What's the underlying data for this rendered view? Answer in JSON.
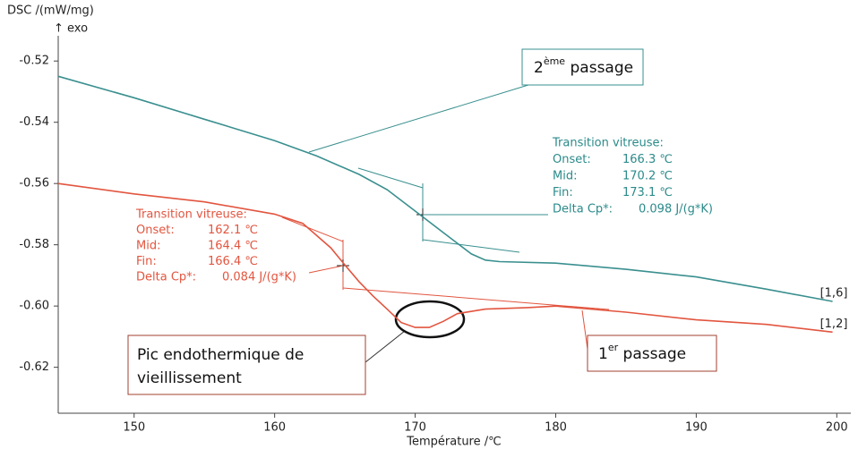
{
  "chart_data": {
    "type": "line",
    "y_label": "DSC /(mW/mg)",
    "y_label_2": "↑ exo",
    "x_label": "Température /℃",
    "xlim": [
      144.6,
      201
    ],
    "ylim": [
      -0.635,
      -0.503
    ],
    "xticks": [
      150,
      160,
      170,
      180,
      190,
      200
    ],
    "yticks": [
      -0.52,
      -0.54,
      -0.56,
      -0.58,
      {
        "value": -0.6,
        "label": "-0.60"
      },
      -0.62
    ],
    "series": [
      {
        "name": "[1,6]",
        "color": "#3a8f8f",
        "x": [
          144.6,
          150,
          155,
          160,
          163,
          166,
          168,
          170,
          172,
          174,
          175,
          176,
          180,
          185,
          190,
          195,
          199.7
        ],
        "values": [
          -0.525,
          -0.532,
          -0.539,
          -0.546,
          -0.551,
          -0.557,
          -0.562,
          -0.569,
          -0.576,
          -0.583,
          -0.585,
          -0.5855,
          -0.586,
          -0.588,
          -0.5905,
          -0.5945,
          -0.5985
        ]
      },
      {
        "name": "[1,2]",
        "color": "#e2553f",
        "x": [
          144.6,
          150,
          155,
          160,
          162,
          164,
          165,
          166,
          167,
          168,
          169,
          170,
          171,
          172,
          173,
          175,
          178,
          180,
          185,
          190,
          195,
          199.7
        ],
        "values": [
          -0.56,
          -0.5634,
          -0.566,
          -0.57,
          -0.573,
          -0.581,
          -0.5866,
          -0.592,
          -0.5967,
          -0.601,
          -0.6054,
          -0.607,
          -0.607,
          -0.605,
          -0.6025,
          -0.601,
          -0.6005,
          -0.6,
          -0.602,
          -0.6045,
          -0.606,
          -0.6085
        ]
      }
    ],
    "annotations": {
      "second_pass": {
        "base": "2",
        "sup": "ème",
        "rest": " passage"
      },
      "first_pass": {
        "base": "1",
        "sup": "er",
        "rest": " passage"
      },
      "peak": [
        "Pic endothermique de",
        "vieillissement"
      ],
      "glass_2": {
        "title": "Transition vitreuse:",
        "rows": [
          [
            "Onset:",
            "166.3 ℃"
          ],
          [
            "Mid:",
            "170.2 ℃"
          ],
          [
            "Fin:",
            "173.1 ℃"
          ],
          [
            "Delta Cp*:",
            "0.098 J/(g*K)"
          ]
        ]
      },
      "glass_1": {
        "title": "Transition vitreuse:",
        "rows": [
          [
            "Onset:",
            "162.1 ℃"
          ],
          [
            "Mid:",
            "164.4 ℃"
          ],
          [
            "Fin:",
            "166.4 ℃"
          ],
          [
            "Delta Cp*:",
            "0.084 J/(g*K)"
          ]
        ]
      }
    }
  }
}
